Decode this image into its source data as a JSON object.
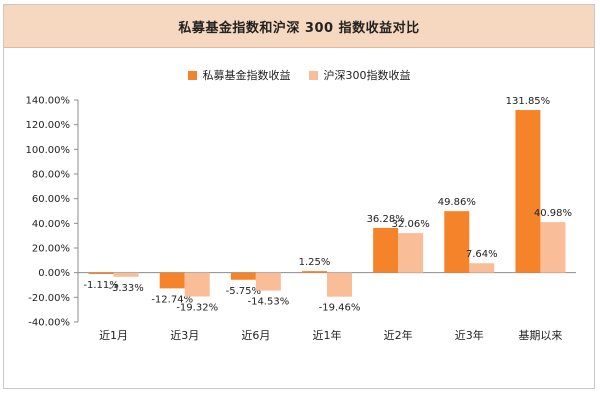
{
  "chart_data": {
    "type": "bar",
    "title": "私募基金指数和沪深 300 指数收益对比",
    "categories": [
      "近1月",
      "近3月",
      "近6月",
      "近1年",
      "近2年",
      "近3年",
      "基期以来"
    ],
    "series": [
      {
        "name": "私募基金指数收益",
        "color": "#f5832a",
        "values": [
          -1.11,
          -12.74,
          -5.75,
          1.25,
          36.28,
          49.86,
          131.85
        ],
        "labels": [
          "-1.11%",
          "-12.74%",
          "-5.75%",
          "1.25%",
          "36.28%",
          "49.86%",
          "131.85%"
        ]
      },
      {
        "name": "沪深300指数收益",
        "color": "#f9bd97",
        "values": [
          -3.33,
          -19.32,
          -14.53,
          -19.46,
          32.06,
          7.64,
          40.98
        ],
        "labels": [
          "-3.33%",
          "-19.32%",
          "-14.53%",
          "-19.46%",
          "32.06%",
          "7.64%",
          "40.98%"
        ]
      }
    ],
    "ylim": [
      -40,
      140
    ],
    "yticks": [
      140,
      120,
      100,
      80,
      60,
      40,
      20,
      0,
      -20,
      -40
    ],
    "ytick_labels": [
      "140.00%",
      "120.00%",
      "100.00%",
      "80.00%",
      "60.00%",
      "40.00%",
      "20.00%",
      "0.00%",
      "-20.00%",
      "-40.00%"
    ],
    "legend_position": "top-center",
    "grid": false
  }
}
